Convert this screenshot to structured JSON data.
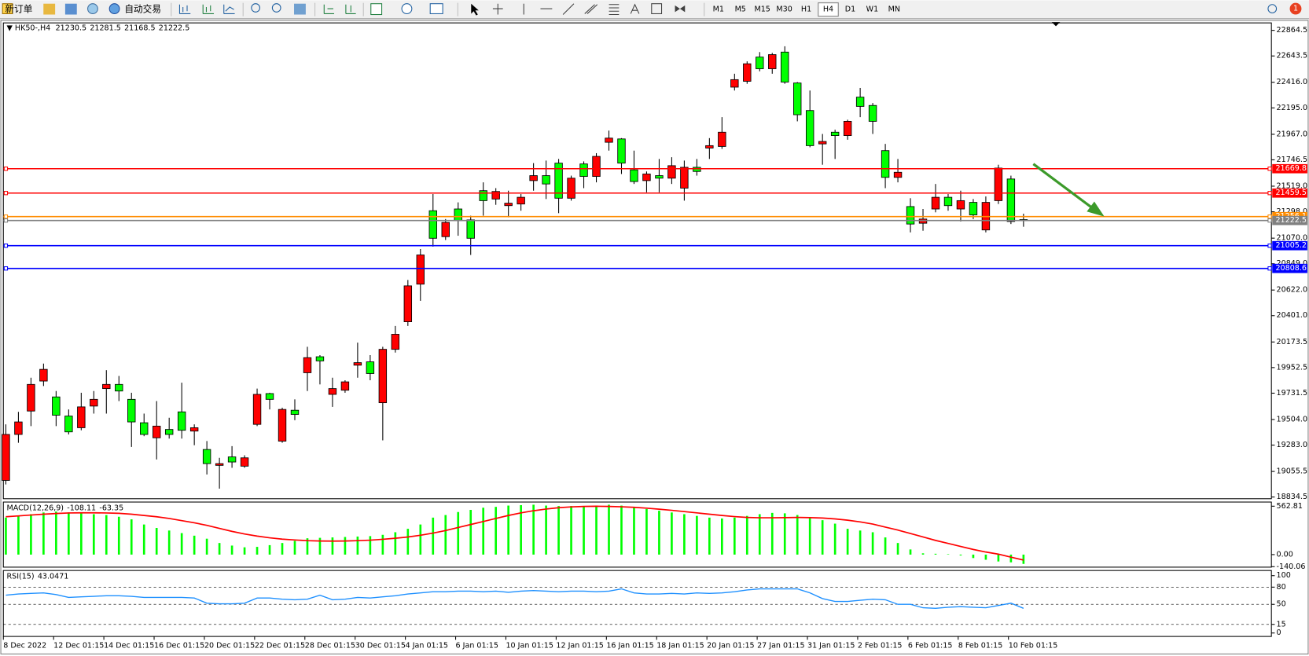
{
  "toolbar": {
    "new_order": "新订单",
    "auto_trading": "自动交易",
    "timeframes": [
      "M1",
      "M5",
      "M15",
      "M30",
      "H1",
      "H4",
      "D1",
      "W1",
      "MN"
    ],
    "active_timeframe": "H4",
    "notifications": "1"
  },
  "chart_data": {
    "type": "candlestick",
    "symbol": "HK50-,H4",
    "categories": [
      "8 Dec 2022",
      null,
      null,
      null,
      "12 Dec 01:15",
      null,
      null,
      null,
      "14 Dec 01:15",
      null,
      null,
      null,
      "16 Dec 01:15",
      null,
      null,
      null,
      "20 Dec 01:15",
      null,
      null,
      null,
      "22 Dec 01:15",
      null,
      null,
      null,
      "28 Dec 01:15",
      null,
      null,
      null,
      "30 Dec 01:15",
      null,
      null,
      null,
      "4 Jan 01:15",
      null,
      null,
      null,
      "6 Jan 01:15",
      null,
      null,
      null,
      "10 Jan 01:15",
      null,
      null,
      null,
      "12 Jan 01:15",
      null,
      null,
      null,
      "16 Jan 01:15",
      null,
      null,
      null,
      "18 Jan 01:15",
      null,
      null,
      null,
      "20 Jan 01:15",
      null,
      null,
      null,
      "27 Jan 01:15",
      null,
      null,
      null,
      "31 Jan 01:15",
      null,
      null,
      null,
      "2 Feb 01:15",
      null,
      null,
      null,
      "6 Feb 01:15",
      null,
      null,
      null,
      "8 Feb 01:15",
      null,
      null,
      null,
      "10 Feb 01:15",
      null
    ],
    "open": [
      18978,
      19375,
      19577,
      19836,
      19699,
      19534,
      19433,
      19620,
      19771,
      19807,
      19678,
      19476,
      19346,
      19418,
      19570,
      19404,
      19245,
      19108,
      19181,
      19101,
      19462,
      19728,
      19317,
      19584,
      19908,
      20046,
      19721,
      19757,
      19973,
      20002,
      19649,
      20110,
      20348,
      20673,
      21307,
      21083,
      21322,
      21228,
      21480,
      21408,
      21351,
      21365,
      21567,
      21610,
      21718,
      21415,
      21711,
      21603,
      21898,
      21927,
      21660,
      21567,
      21610,
      21588,
      21502,
      21682,
      21848,
      21862,
      22374,
      22425,
      22634,
      22533,
      22677,
      22410,
      22172,
      21884,
      21985,
      21956,
      22288,
      22216,
      21826,
      21595,
      21343,
      21199,
      21322,
      21423,
      21322,
      21379,
      21141,
      21394,
      21581,
      21230.5
    ],
    "high": [
      19462,
      19570,
      19865,
      19987,
      19750,
      19591,
      19735,
      19750,
      19930,
      19880,
      19735,
      19555,
      19663,
      19519,
      19822,
      19462,
      19318,
      19173,
      19274,
      19195,
      19771,
      19735,
      19606,
      19678,
      20132,
      20060,
      19865,
      19843,
      20168,
      20060,
      20132,
      20312,
      20709,
      20976,
      21451,
      21235,
      21379,
      21264,
      21552,
      21502,
      21480,
      21451,
      21718,
      21740,
      21754,
      21610,
      21733,
      21804,
      21999,
      21934,
      21826,
      21646,
      21754,
      21769,
      21740,
      21754,
      21934,
      22115,
      22490,
      22597,
      22677,
      22670,
      22727,
      22418,
      22345,
      21970,
      22007,
      22093,
      22367,
      22237,
      21884,
      21754,
      21415,
      21322,
      21538,
      21451,
      21480,
      21408,
      21430,
      21704,
      21610,
      21281.5
    ],
    "low": [
      18943,
      19303,
      19447,
      19793,
      19447,
      19375,
      19411,
      19555,
      19555,
      19663,
      19267,
      19360,
      19159,
      19339,
      19339,
      19282,
      19029,
      18907,
      19087,
      19087,
      19447,
      19591,
      19303,
      19498,
      19750,
      19807,
      19613,
      19735,
      19865,
      19843,
      19324,
      20082,
      20312,
      20529,
      20997,
      21054,
      21091,
      20925,
      21264,
      21358,
      21250,
      21307,
      21480,
      21408,
      21286,
      21394,
      21502,
      21552,
      21826,
      21624,
      21538,
      21466,
      21466,
      21538,
      21394,
      21610,
      21754,
      21841,
      22345,
      22403,
      22511,
      22490,
      22403,
      22079,
      21855,
      21704,
      21754,
      21920,
      22115,
      21970,
      21502,
      21552,
      21120,
      21134,
      21293,
      21307,
      21214,
      21235,
      21120,
      21365,
      21192,
      21168.5
    ],
    "close": [
      19375,
      19483,
      19807,
      19937,
      19541,
      19397,
      19613,
      19678,
      19807,
      19750,
      19483,
      19375,
      19447,
      19375,
      19411,
      19433,
      19123,
      19123,
      19137,
      19173,
      19721,
      19678,
      19591,
      19548,
      20038,
      20010,
      19771,
      19829,
      19995,
      19901,
      20110,
      20240,
      20658,
      20925,
      21069,
      21206,
      21221,
      21069,
      21394,
      21473,
      21372,
      21423,
      21610,
      21538,
      21415,
      21588,
      21603,
      21776,
      21934,
      21718,
      21559,
      21624,
      21588,
      21696,
      21682,
      21646,
      21869,
      21985,
      22439,
      22576,
      22533,
      22655,
      22418,
      22136,
      21869,
      21905,
      21956,
      22079,
      22208,
      22079,
      21595,
      21639,
      21192,
      21235,
      21423,
      21351,
      21394,
      21271,
      21379,
      21675,
      21214,
      21222.5
    ],
    "up_color": "#ff0000",
    "down_color": "#00ff00",
    "ylim": [
      18820,
      22929
    ],
    "yticks": [
      22864.5,
      22643.5,
      {
        "value": 22416,
        "label": "22416.0"
      },
      {
        "value": 22195,
        "label": "22195.0"
      },
      {
        "value": 21967,
        "label": "21967.0"
      },
      21746.5,
      {
        "value": 21519,
        "label": "21519.0"
      },
      {
        "value": 21298,
        "label": "21298.0"
      },
      {
        "value": 21070,
        "label": "21070.0"
      },
      {
        "value": 20849,
        "label": "20849.0"
      },
      {
        "value": 20622,
        "label": "20622.0"
      },
      {
        "value": 20401,
        "label": "20401.0"
      },
      20173.5,
      19952.5,
      19731.5,
      {
        "value": 19504,
        "label": "19504.0"
      },
      {
        "value": 19283,
        "label": "19283.0"
      },
      19055.5,
      18834.5
    ],
    "levels": [
      {
        "value": 21669.8,
        "color": "#ff0000"
      },
      {
        "value": 21459.5,
        "color": "#ff0000"
      },
      {
        "value": 21256.1,
        "color": "#ff8c00"
      },
      {
        "value": 21222.5,
        "color": "#808080"
      },
      {
        "value": 21005.2,
        "color": "#0000ff"
      },
      {
        "value": 20808.6,
        "color": "#0000ff"
      }
    ],
    "macd": {
      "label": "MACD(12,26,9)",
      "ylim": [
        -146,
        611
      ],
      "yticks": [
        562.81,
        {
          "value": 0,
          "label": "0.00"
        },
        -140.06
      ],
      "histogram_color": "#00ff00",
      "signal_color": "#ff0000",
      "histogram": [
        430,
        450,
        470,
        490,
        500,
        490,
        480,
        470,
        460,
        440,
        410,
        350,
        310,
        280,
        250,
        220,
        185,
        135,
        105,
        85,
        90,
        110,
        135,
        160,
        190,
        195,
        200,
        205,
        210,
        215,
        230,
        260,
        300,
        350,
        430,
        460,
        495,
        520,
        545,
        555,
        570,
        575,
        580,
        570,
        565,
        565,
        565,
        570,
        580,
        570,
        550,
        530,
        510,
        490,
        470,
        450,
        430,
        420,
        430,
        450,
        470,
        485,
        480,
        460,
        430,
        400,
        360,
        300,
        280,
        260,
        200,
        135,
        60,
        15,
        10,
        5,
        -10,
        -40,
        -60,
        -80,
        -90,
        -108.11
      ],
      "signal": [
        440,
        450,
        460,
        470,
        478,
        484,
        486,
        486,
        484,
        480,
        470,
        455,
        440,
        420,
        395,
        370,
        340,
        305,
        270,
        240,
        215,
        195,
        180,
        170,
        162,
        158,
        157,
        158,
        162,
        168,
        178,
        190,
        205,
        225,
        250,
        280,
        315,
        350,
        385,
        420,
        455,
        485,
        510,
        530,
        545,
        555,
        560,
        562,
        560,
        556,
        550,
        540,
        528,
        515,
        500,
        485,
        470,
        455,
        442,
        432,
        428,
        428,
        430,
        432,
        430,
        425,
        415,
        400,
        380,
        355,
        320,
        285,
        245,
        205,
        165,
        130,
        95,
        60,
        30,
        5,
        -30,
        -63.35
      ]
    },
    "rsi": {
      "label": "RSI(15)",
      "ylim": [
        -6,
        109
      ],
      "yticks": [
        100,
        80,
        50,
        15,
        0
      ],
      "color": "#1e90ff",
      "values": [
        66,
        68,
        69,
        70,
        67,
        62,
        63,
        64,
        65,
        65,
        64,
        62,
        62,
        62,
        62,
        61,
        52,
        51,
        51,
        52,
        61,
        61,
        59,
        58,
        59,
        66,
        58,
        59,
        62,
        61,
        63,
        65,
        68,
        70,
        72,
        72,
        73,
        73,
        72,
        73,
        71,
        73,
        74,
        73,
        72,
        73,
        73,
        72,
        73,
        77,
        70,
        68,
        68,
        69,
        68,
        70,
        69,
        70,
        72,
        75,
        77,
        77,
        77,
        77,
        70,
        60,
        55,
        55,
        57,
        59,
        58,
        50,
        50,
        44,
        43,
        45,
        46,
        45,
        44,
        48,
        52,
        43.0471
      ]
    }
  }
}
